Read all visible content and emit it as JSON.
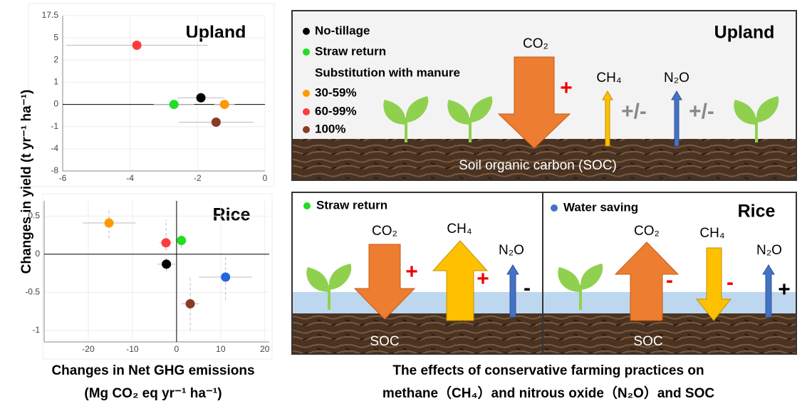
{
  "chart_data": [
    {
      "type": "scatter",
      "title": "Upland",
      "x": [
        -1.9,
        -2.7,
        -1.2,
        -3.8,
        -1.45
      ],
      "values": [
        0.3,
        0,
        0,
        4,
        -0.8
      ],
      "xerr": [
        0.7,
        0.6,
        0.3,
        2.1,
        1.1
      ],
      "colors": [
        "#000000",
        "#22dd22",
        "#ff9900",
        "#ff3b3b",
        "#8b3a2a"
      ],
      "xlim": [
        -6,
        0
      ],
      "xticks": [
        -6,
        -4,
        -2,
        0
      ],
      "ylim": [
        -8,
        17.5
      ],
      "yticks": [
        -8,
        -4,
        -1,
        0,
        1,
        2,
        5,
        17.5
      ],
      "broken_axis": true,
      "grid": true
    },
    {
      "type": "scatter",
      "title": "Rice",
      "x": [
        -15.3,
        -2.4,
        1.1,
        -2.3,
        11.1,
        3.1
      ],
      "values": [
        0.41,
        0.15,
        0.18,
        -0.13,
        -0.3,
        -0.65
      ],
      "xerr": [
        6,
        1.5,
        1,
        2,
        6,
        2
      ],
      "yerr": [
        0.2,
        0.3,
        0.1,
        0.1,
        0.3,
        0.35
      ],
      "colors": [
        "#ff9900",
        "#ff3b3b",
        "#22dd22",
        "#000000",
        "#2266dd",
        "#8b3a2a"
      ],
      "xlim": [
        -30,
        21
      ],
      "xticks": [
        -20,
        -10,
        0,
        10,
        20
      ],
      "ylim": [
        -1.15,
        0.7
      ],
      "yticks": [
        -1,
        -0.5,
        0,
        0.5
      ],
      "grid": true
    }
  ],
  "y_label": "Changes in yield (t yr⁻¹ ha⁻¹)",
  "x_label": [
    "Changes in Net GHG emissions",
    "(Mg CO₂ eq yr⁻¹ ha⁻¹)"
  ],
  "caption": [
    "The effects of conservative farming practices on",
    "methane（CH₄）and nitrous oxide（N₂O）and SOC"
  ],
  "upland": {
    "title": "Upland",
    "legend": [
      "No-tillage",
      "Straw return",
      "Substitution with manure",
      "30-59%",
      "60-99%",
      "100%"
    ],
    "co2": "CO₂",
    "co2_sign": "+",
    "ch4": "CH₄",
    "ch4_sign": "+/-",
    "n2o": "N₂O",
    "n2o_sign": "+/-",
    "soil": "Soil organic carbon (SOC)"
  },
  "rice": {
    "title": "Rice",
    "left": {
      "legend": "Straw return",
      "co2": "CO₂",
      "co2_sign": "+",
      "ch4": "CH₄",
      "ch4_sign": "+",
      "n2o": "N₂O",
      "n2o_sign": "-",
      "soil": "SOC"
    },
    "right": {
      "legend": "Water saving",
      "co2": "CO₂",
      "co2_sign": "-",
      "ch4": "CH₄",
      "ch4_sign": "-",
      "n2o": "N₂O",
      "n2o_sign": "+",
      "soil": "SOC"
    }
  }
}
